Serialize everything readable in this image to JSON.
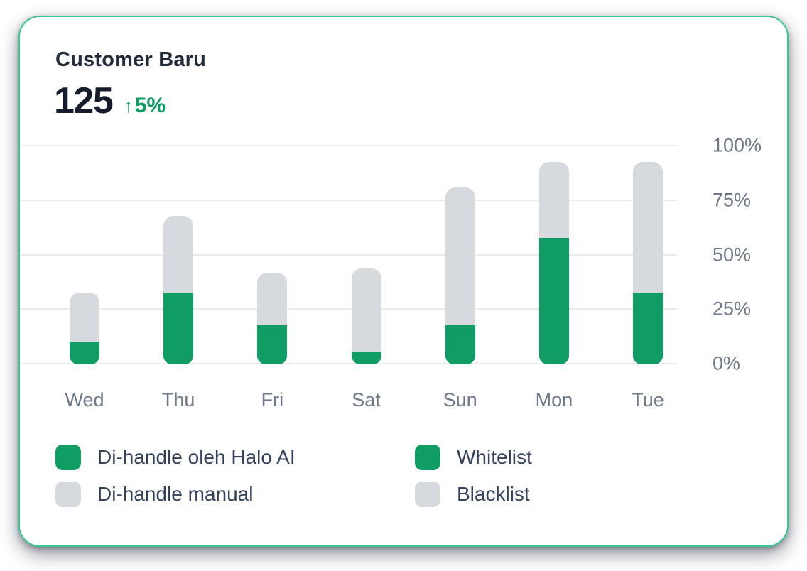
{
  "card": {
    "title": "Customer Baru",
    "border_color": "#36c98f",
    "metric": {
      "value": "125",
      "delta_arrow": "↑",
      "delta": "5%",
      "delta_color": "#0f9d64"
    }
  },
  "chart_data": {
    "type": "bar",
    "stacked": true,
    "categories": [
      "Wed",
      "Thu",
      "Fri",
      "Sat",
      "Sun",
      "Mon",
      "Tue"
    ],
    "series": [
      {
        "name": "Di-handle oleh Halo AI",
        "color": "#0f9d64",
        "values": [
          10,
          33,
          18,
          6,
          18,
          58,
          33
        ]
      },
      {
        "name": "Di-handle manual",
        "color": "#d6d9de",
        "values": [
          23,
          35,
          24,
          38,
          63,
          35,
          60
        ]
      }
    ],
    "stack_totals": [
      33,
      68,
      42,
      44,
      81,
      93,
      93
    ],
    "ytick_labels": [
      "0%",
      "25%",
      "50%",
      "75%",
      "100%"
    ],
    "ytick_values": [
      0,
      25,
      50,
      75,
      100
    ],
    "ylim": [
      0,
      100
    ],
    "grid": true,
    "yaxis_side": "right",
    "legend_position": "bottom"
  },
  "legend": {
    "items": [
      {
        "label": "Di-handle oleh Halo AI",
        "color": "#0f9d64"
      },
      {
        "label": "Whitelist",
        "color": "#0f9d64"
      },
      {
        "label": "Di-handle manual",
        "color": "#d6d9de"
      },
      {
        "label": "Blacklist",
        "color": "#d6d9de"
      }
    ]
  }
}
